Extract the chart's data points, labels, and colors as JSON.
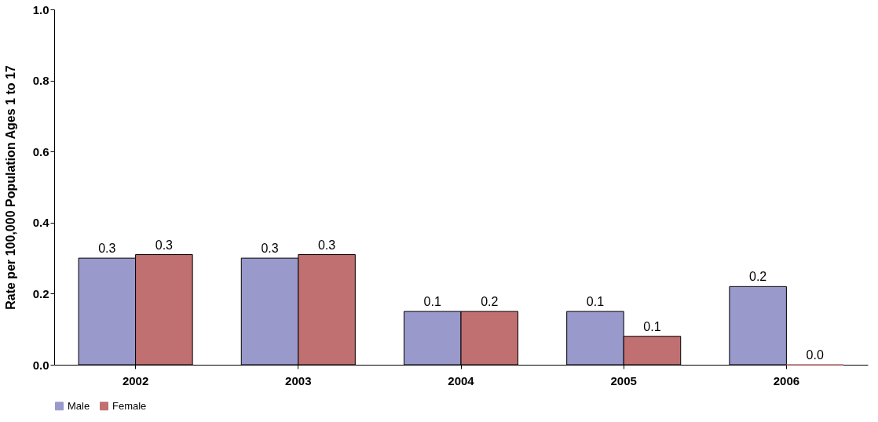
{
  "chart_data": {
    "type": "bar",
    "ylabel": "Rate per 100,000 Population Ages 1 to 17",
    "categories": [
      "2002",
      "2003",
      "2004",
      "2005",
      "2006"
    ],
    "series": [
      {
        "name": "Male",
        "color": "#9999cc",
        "values": [
          0.3,
          0.3,
          0.15,
          0.15,
          0.22
        ],
        "value_labels": [
          "0.3",
          "0.3",
          "0.1",
          "0.1",
          "0.2"
        ]
      },
      {
        "name": "Female",
        "color": "#c07070",
        "values": [
          0.31,
          0.31,
          0.15,
          0.08,
          0.0
        ],
        "value_labels": [
          "0.3",
          "0.3",
          "0.2",
          "0.1",
          "0.0"
        ]
      }
    ],
    "ylim": [
      0,
      1
    ],
    "yticks": [
      {
        "value": 0,
        "label": "0.0"
      },
      {
        "value": 0.2,
        "label": "0.2"
      },
      {
        "value": 0.4,
        "label": "0.4"
      },
      {
        "value": 0.6,
        "label": "0.6"
      },
      {
        "value": 0.8,
        "label": "0.8"
      },
      {
        "value": 1,
        "label": "1.0"
      }
    ],
    "grid": false,
    "legend": "bottom"
  }
}
